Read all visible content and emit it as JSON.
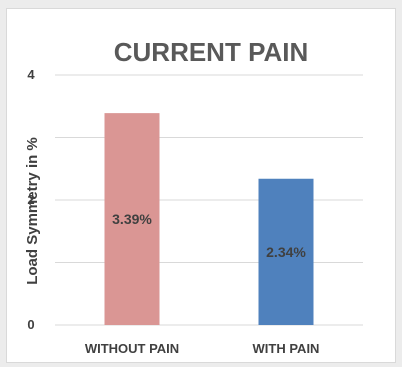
{
  "chart_data": {
    "type": "bar",
    "title": "CURRENT PAIN",
    "xlabel": "",
    "ylabel": "Load Symmetry in %",
    "ylim": [
      0,
      4
    ],
    "yticks": [
      "0",
      "2",
      "4"
    ],
    "categories": [
      "WITHOUT PAIN",
      "WITH PAIN"
    ],
    "values": [
      3.39,
      2.34
    ],
    "data_labels": [
      "3.39%",
      "2.34%"
    ],
    "bar_colors": [
      "#da9694",
      "#4f81bd"
    ],
    "grid": true,
    "legend": "none"
  }
}
